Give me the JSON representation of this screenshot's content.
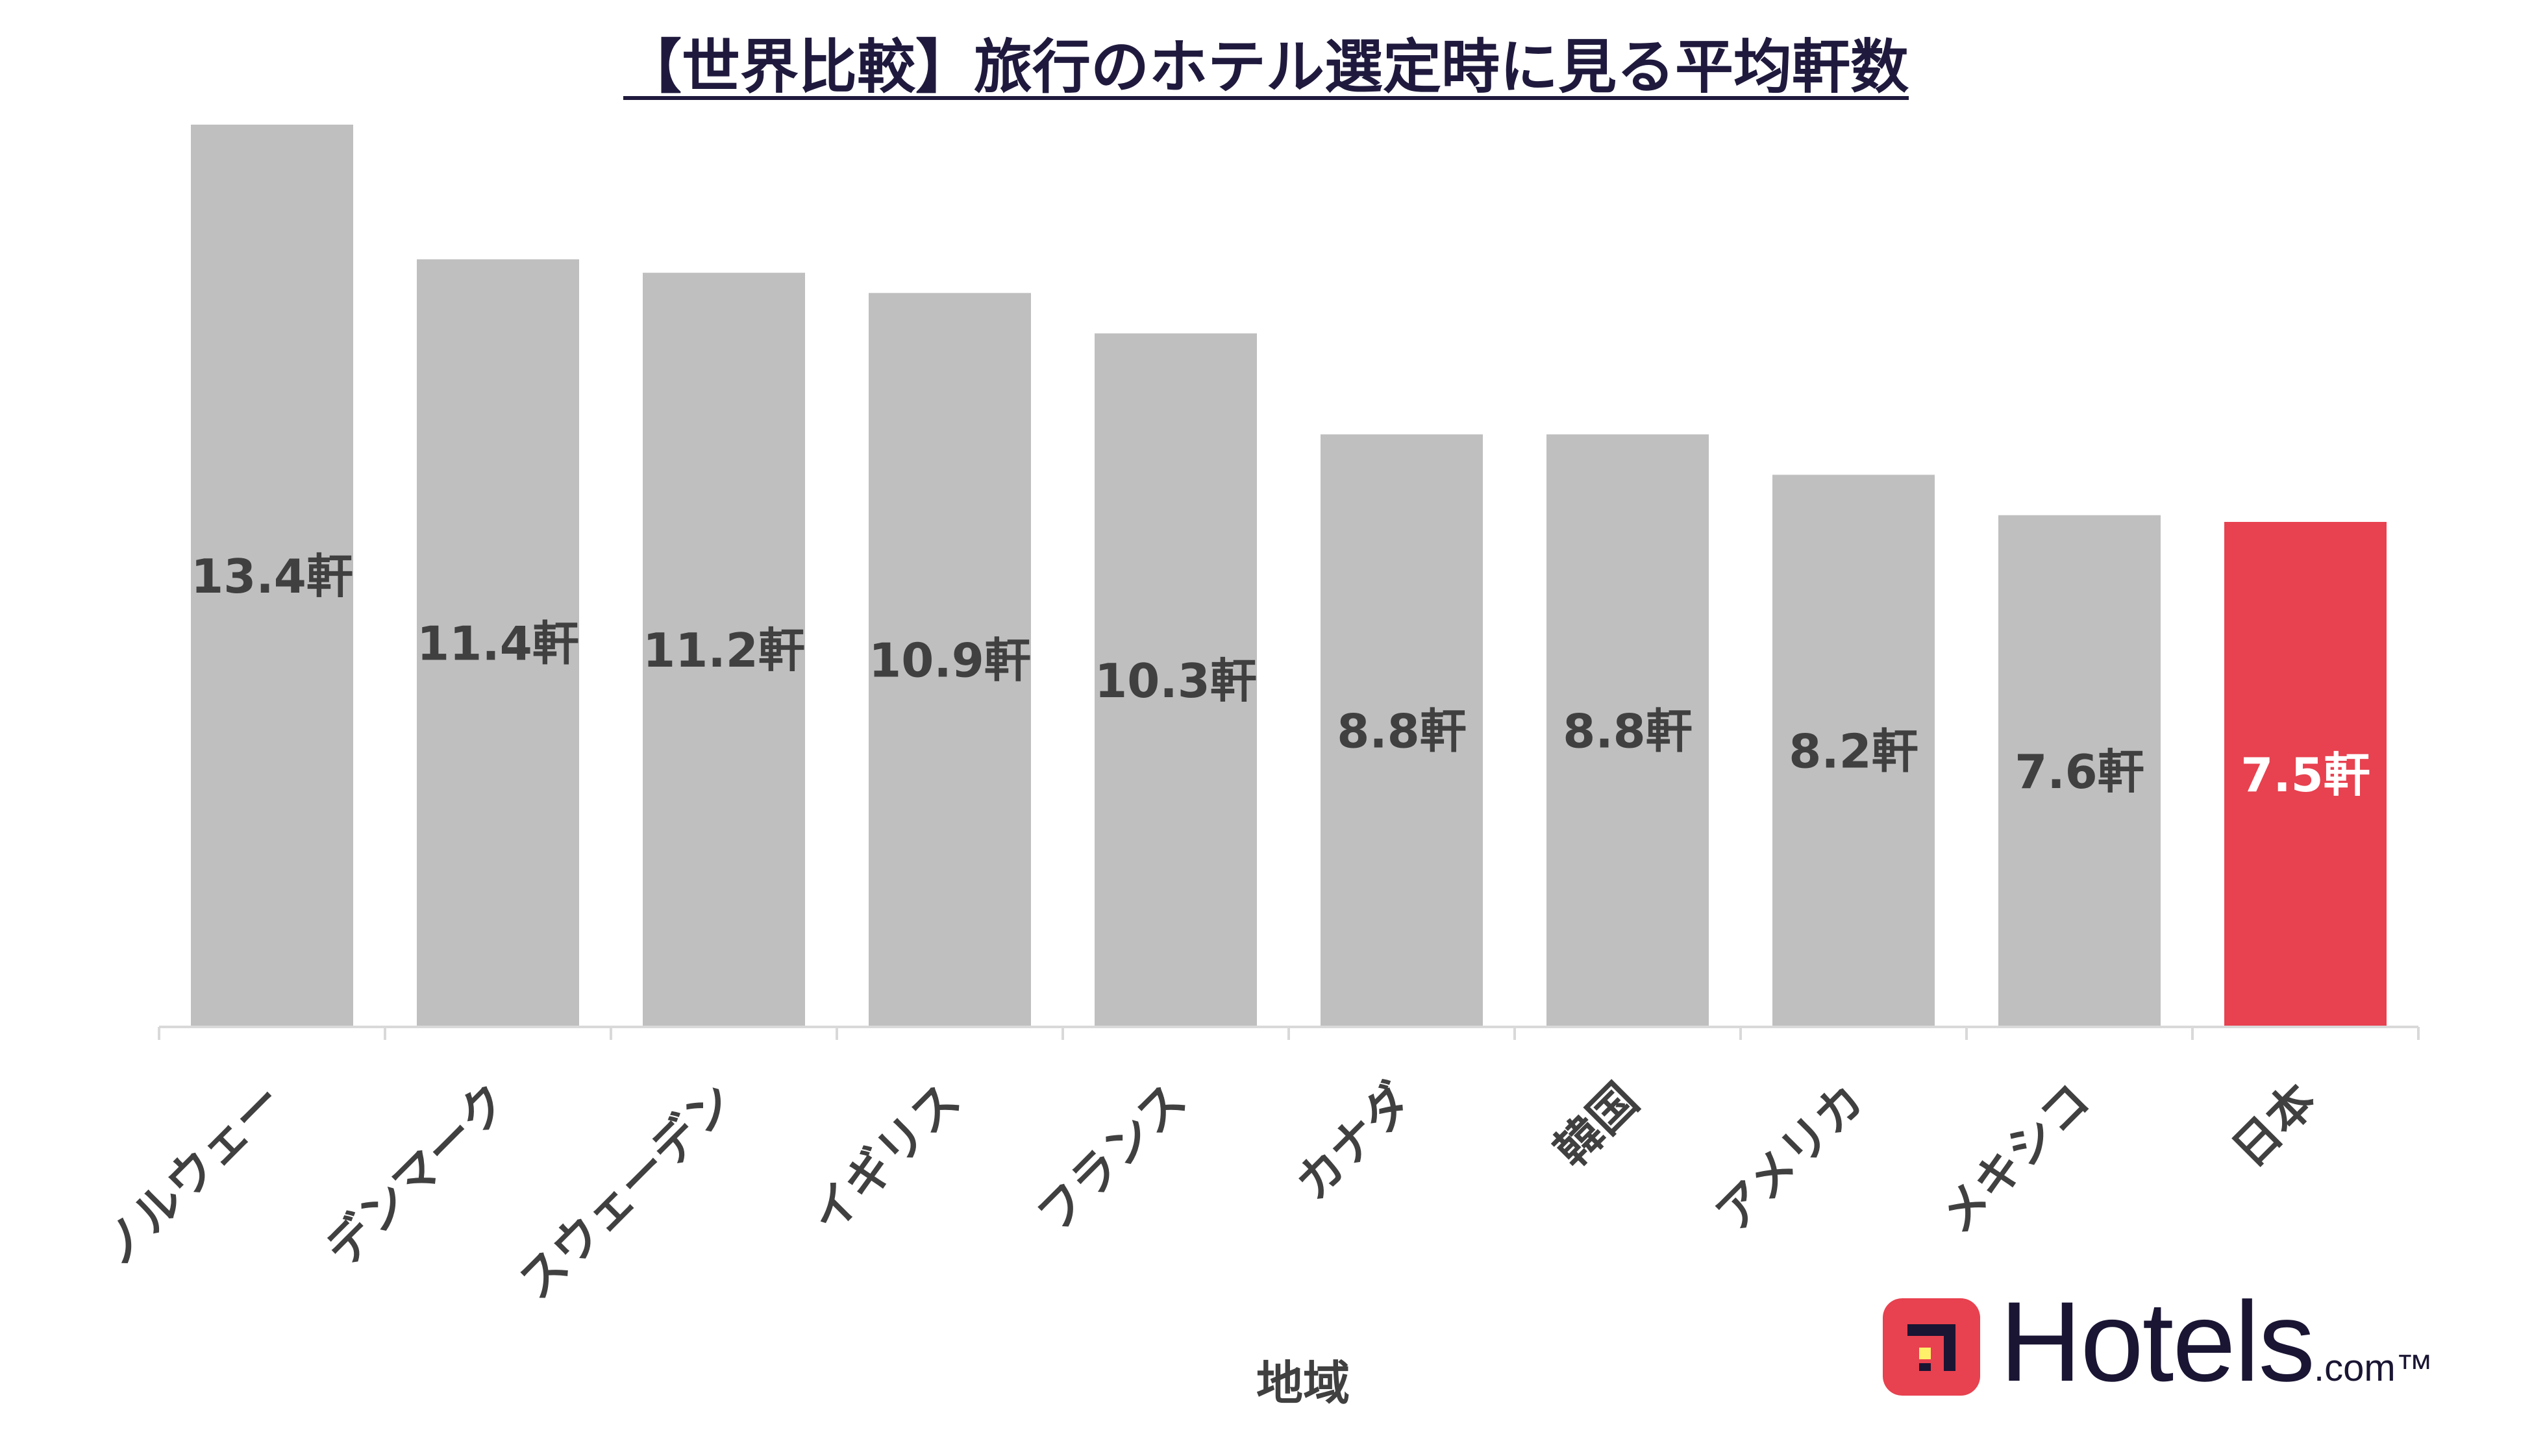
{
  "chart_data": {
    "type": "bar",
    "title": "【世界比較】旅行のホテル選定時に見る平均軒数",
    "xlabel": "地域",
    "ylabel": "",
    "categories": [
      "ノルウェー",
      "デンマーク",
      "スウェーデン",
      "イギリス",
      "フランス",
      "カナダ",
      "韓国",
      "アメリカ",
      "メキシコ",
      "日本"
    ],
    "values": [
      13.4,
      11.4,
      11.2,
      10.9,
      10.3,
      8.8,
      8.8,
      8.2,
      7.6,
      7.5
    ],
    "data_labels": [
      "13.4軒",
      "11.4軒",
      "11.2軒",
      "10.9軒",
      "10.3軒",
      "8.8軒",
      "8.8軒",
      "8.2軒",
      "7.6軒",
      "7.5軒"
    ],
    "ylim": [
      0,
      13.4
    ],
    "grid": false,
    "highlight_category": "日本",
    "colors": {
      "bar": "#bfbfbf",
      "highlight": "#e8414f",
      "label": "#404040",
      "highlight_label": "#ffffff",
      "axis": "#d9d9d9"
    }
  },
  "brand": {
    "wordmark": "Hotels",
    "suffix": ".com™",
    "icon": "hotels-logo-icon",
    "color": "#e8414f"
  }
}
